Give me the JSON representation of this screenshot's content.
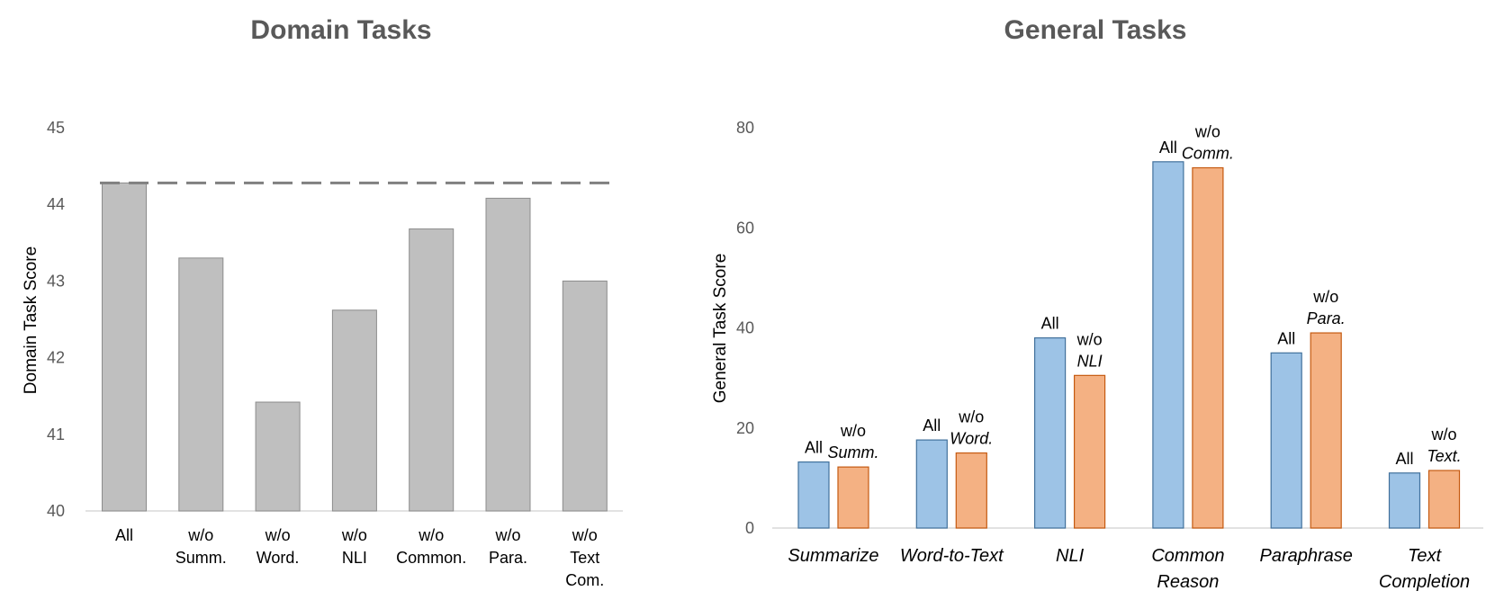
{
  "chart_data": [
    {
      "type": "bar",
      "title": "Domain Tasks",
      "ylabel": "Domain Task Score",
      "ylim": [
        40,
        45
      ],
      "yticks": [
        "40",
        "41",
        "42",
        "43",
        "44",
        "45"
      ],
      "categories": [
        [
          "All"
        ],
        [
          "w/o",
          "Summ."
        ],
        [
          "w/o",
          "Word."
        ],
        [
          "w/o",
          "NLI"
        ],
        [
          "w/o",
          "Common."
        ],
        [
          "w/o",
          "Para."
        ],
        [
          "w/o",
          "Text",
          "Com."
        ]
      ],
      "values": [
        44.28,
        43.3,
        41.42,
        42.62,
        43.68,
        44.08,
        43.0
      ],
      "reference_line": 44.28,
      "bar_color": "#bfbfbf",
      "bar_edge": "#8c8c8c",
      "reference_line_color": "#808080",
      "gridlines": false
    },
    {
      "type": "bar",
      "title": "General Tasks",
      "ylabel": "General Task  Score",
      "ylim": [
        0,
        80
      ],
      "yticks": [
        "0",
        "20",
        "40",
        "60",
        "80"
      ],
      "categories": [
        [
          "Summarize"
        ],
        [
          "Word-to-Text"
        ],
        [
          "NLI"
        ],
        [
          "Common",
          "Reason"
        ],
        [
          "Paraphrase"
        ],
        [
          "Text",
          "Completion"
        ]
      ],
      "series": [
        {
          "values": [
            13.2,
            17.6,
            38.0,
            73.2,
            35.0,
            11.0
          ],
          "labels": [
            [
              "All"
            ],
            [
              "All"
            ],
            [
              "All"
            ],
            [
              "All"
            ],
            [
              "All"
            ],
            [
              "All"
            ]
          ]
        },
        {
          "values": [
            12.2,
            15.0,
            30.5,
            72.0,
            39.0,
            11.5
          ],
          "labels": [
            [
              "w/o",
              "Summ."
            ],
            [
              "w/o",
              "Word."
            ],
            [
              "w/o",
              "NLI"
            ],
            [
              "w/o",
              "Comm."
            ],
            [
              "w/o",
              "Para."
            ],
            [
              "w/o",
              "Text."
            ]
          ]
        }
      ],
      "series_colors": [
        "#9dc3e6",
        "#f4b183"
      ],
      "series_edges": [
        "#41719c",
        "#c55a11"
      ],
      "gridlines": false
    }
  ]
}
